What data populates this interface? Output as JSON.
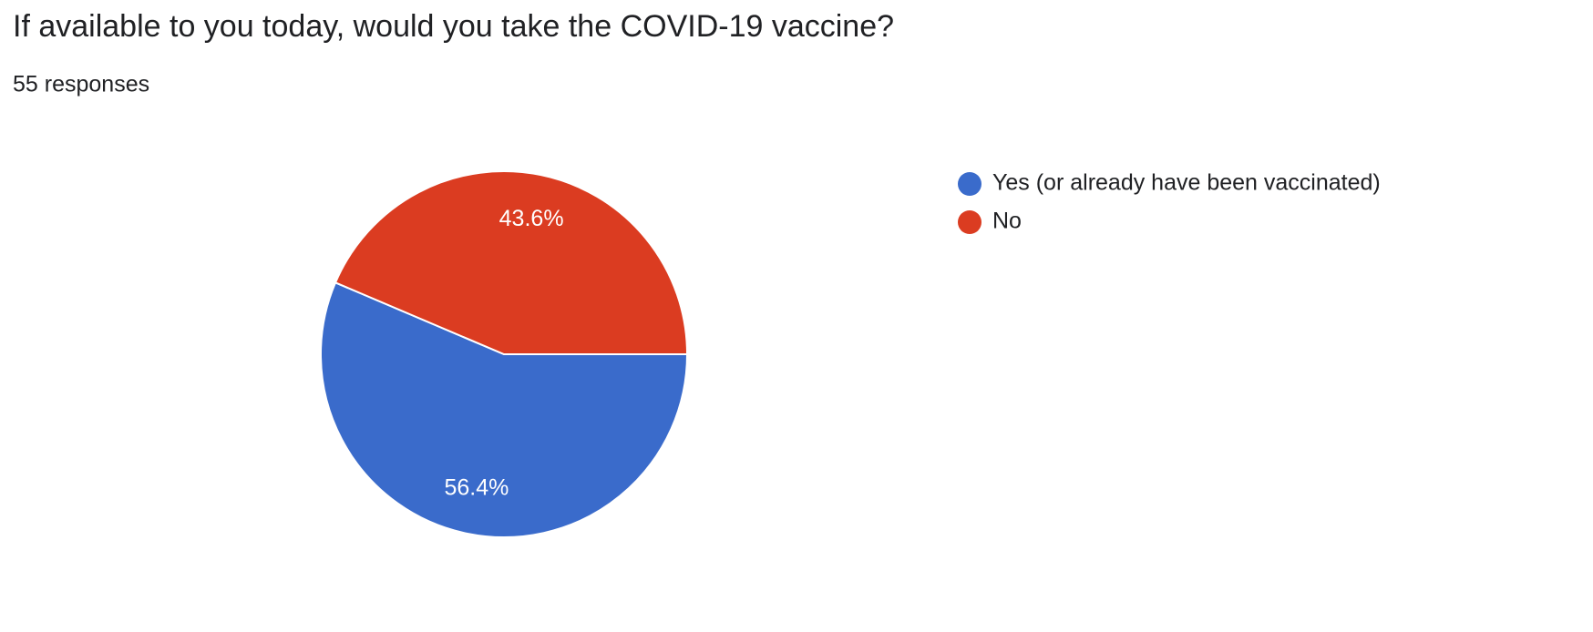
{
  "chart_data": {
    "type": "pie",
    "title": "If available to you today, would you take the COVID-19 vaccine?",
    "subtitle": "55 responses",
    "categories": [
      "Yes (or already have been vaccinated)",
      "No"
    ],
    "values": [
      56.4,
      43.6
    ],
    "value_labels": [
      "56.4%",
      "43.6%"
    ],
    "colors": [
      "#3a6bcb",
      "#db3c21"
    ],
    "legend": "right"
  }
}
